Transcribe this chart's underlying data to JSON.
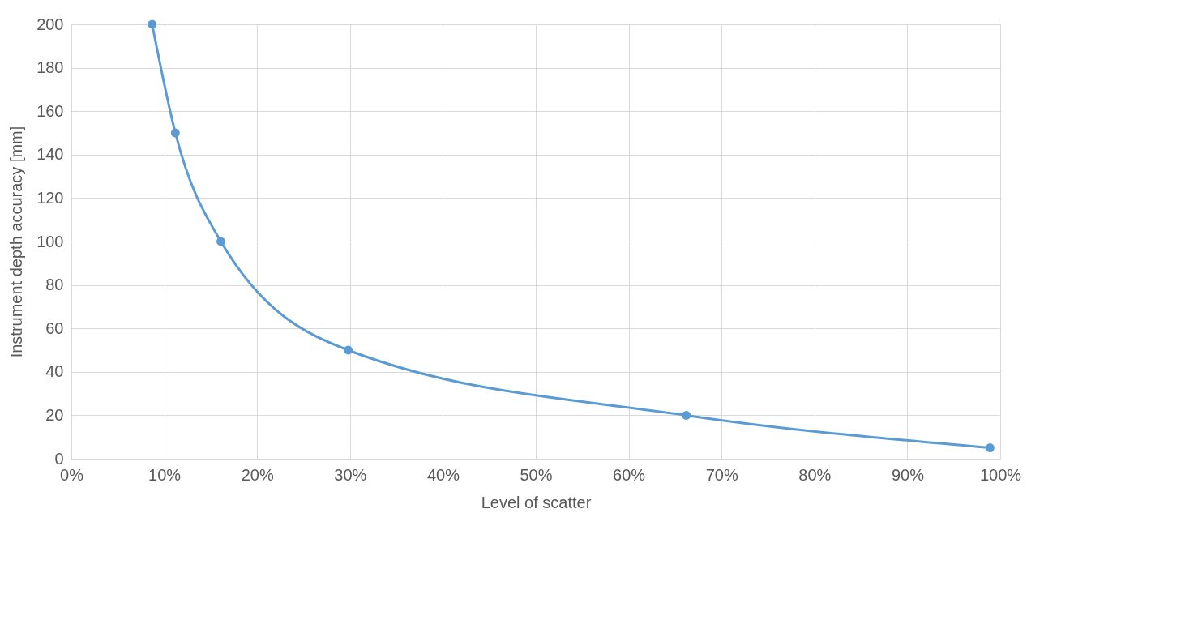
{
  "chart_data": {
    "type": "line",
    "xlabel": "Level of scatter",
    "ylabel": "Instrument depth accuracy [mm]",
    "series": [
      {
        "color": "#5b9bd5",
        "x": [
          8.7,
          11.2,
          16.1,
          29.8,
          66.2,
          98.9
        ],
        "values": [
          200,
          150,
          100,
          50,
          20,
          5
        ]
      }
    ],
    "xlim": [
      0,
      100
    ],
    "xticks": [
      {
        "value": 0,
        "label": "0%"
      },
      {
        "value": 10,
        "label": "10%"
      },
      {
        "value": 20,
        "label": "20%"
      },
      {
        "value": 30,
        "label": "30%"
      },
      {
        "value": 40,
        "label": "40%"
      },
      {
        "value": 50,
        "label": "50%"
      },
      {
        "value": 60,
        "label": "60%"
      },
      {
        "value": 70,
        "label": "70%"
      },
      {
        "value": 80,
        "label": "80%"
      },
      {
        "value": 90,
        "label": "90%"
      },
      {
        "value": 100,
        "label": "100%"
      }
    ],
    "ylim": [
      0,
      200
    ],
    "yticks": [
      0,
      20,
      40,
      60,
      80,
      100,
      120,
      140,
      160,
      180,
      200
    ],
    "grid": true,
    "marker": "circle",
    "line_style": "solid"
  }
}
